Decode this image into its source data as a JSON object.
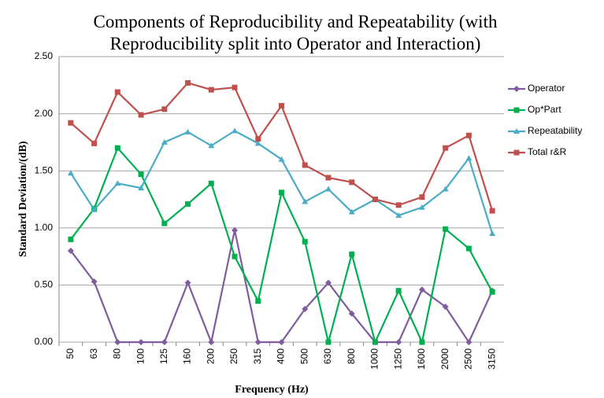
{
  "chart_data": {
    "type": "line",
    "title": "Components of Reproducibility and Repeatability (with Reproducibility split into Operator and Interaction)",
    "x_label": "Frequency (Hz)",
    "y_label": "Standard Deviation/(dB)",
    "categories": [
      "50",
      "63",
      "80",
      "100",
      "125",
      "160",
      "200",
      "250",
      "315",
      "400",
      "500",
      "630",
      "800",
      "1000",
      "1250",
      "1600",
      "2000",
      "2500",
      "3150"
    ],
    "series": [
      {
        "name": "Operator",
        "color": "#7f5c9e",
        "marker": "diamond",
        "values": [
          0.8,
          0.53,
          0,
          0,
          0,
          0.52,
          0,
          0.98,
          0,
          0,
          0.29,
          0.52,
          0.25,
          0,
          0,
          0.46,
          0.31,
          0,
          0.45
        ]
      },
      {
        "name": "Op*Part",
        "color": "#00b050",
        "marker": "square",
        "values": [
          0.9,
          1.17,
          1.7,
          1.47,
          1.04,
          1.21,
          1.39,
          0.75,
          0.36,
          1.31,
          0.88,
          0,
          0.77,
          0,
          0.45,
          0,
          0.99,
          0.82,
          0.44
        ]
      },
      {
        "name": "Repeatability",
        "color": "#4bacc6",
        "marker": "triangle",
        "values": [
          1.48,
          1.16,
          1.39,
          1.35,
          1.75,
          1.84,
          1.72,
          1.85,
          1.74,
          1.6,
          1.23,
          1.34,
          1.14,
          1.25,
          1.11,
          1.18,
          1.34,
          1.61,
          0.95
        ]
      },
      {
        "name": "Total r&R",
        "color": "#c0504d",
        "marker": "square",
        "values": [
          1.92,
          1.74,
          2.19,
          1.99,
          2.04,
          2.27,
          2.21,
          2.23,
          1.78,
          2.07,
          1.55,
          1.44,
          1.4,
          1.25,
          1.2,
          1.27,
          1.7,
          1.81,
          1.15
        ]
      }
    ],
    "ylim": [
      0,
      2.5
    ],
    "yticks": [
      {
        "value": 0,
        "label": "0.00"
      },
      {
        "value": 0.5,
        "label": "0.50"
      },
      {
        "value": 1,
        "label": "1.00"
      },
      {
        "value": 1.5,
        "label": "1.50"
      },
      {
        "value": 2,
        "label": "2.00"
      },
      {
        "value": 2.5,
        "label": "2.50"
      }
    ],
    "grid": true,
    "legend": "right"
  }
}
